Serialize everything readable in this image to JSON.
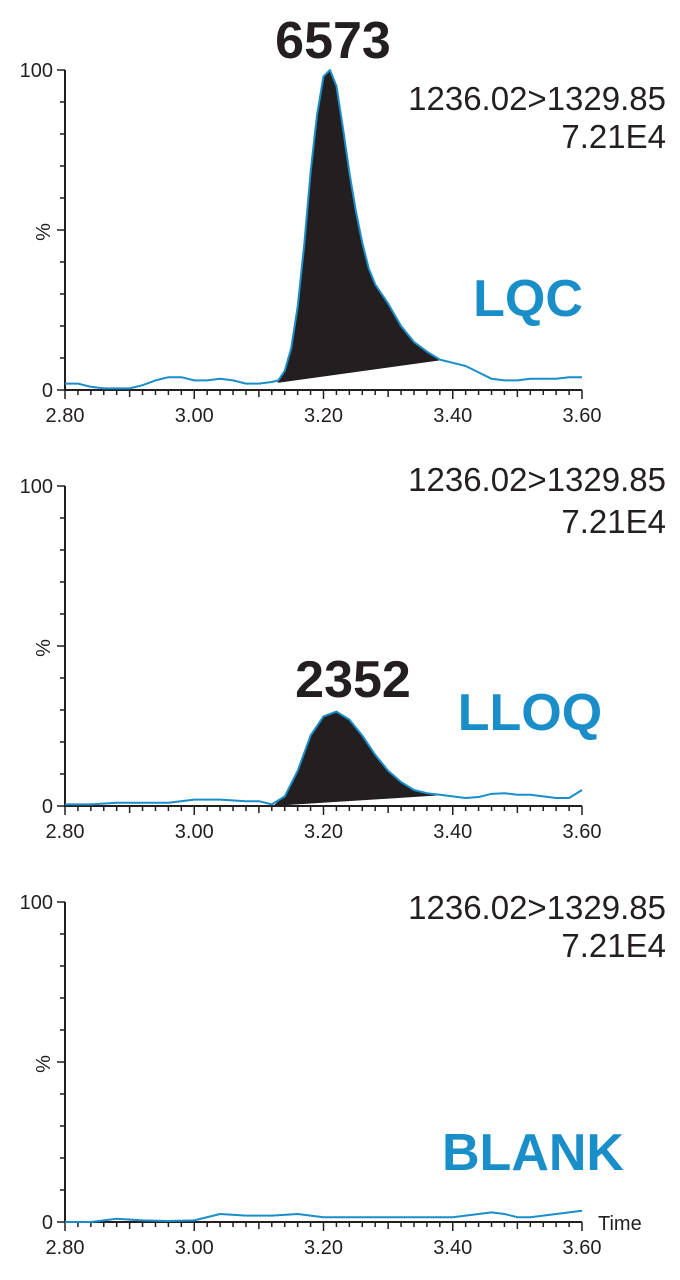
{
  "chart_data": [
    {
      "type": "line",
      "sample_label": "LQC",
      "transition": "1236.02>1329.85",
      "intensity": "7.21E4",
      "peak_area_label": "6573",
      "xlim": [
        2.8,
        3.6
      ],
      "ylim": [
        0,
        100
      ],
      "x_ticks": [
        "2.80",
        "3.00",
        "3.20",
        "3.40",
        "3.60"
      ],
      "y_ticks": [
        "0",
        "100"
      ],
      "ylabel": "%",
      "xlabel": "",
      "integration": {
        "start": [
          3.13,
          2.5
        ],
        "end": [
          3.38,
          9.5
        ]
      },
      "series": [
        {
          "color": "#1a8ec9",
          "x": [
            2.8,
            2.82,
            2.84,
            2.86,
            2.88,
            2.9,
            2.92,
            2.94,
            2.96,
            2.98,
            3.0,
            3.02,
            3.04,
            3.06,
            3.08,
            3.1,
            3.12,
            3.13,
            3.14,
            3.15,
            3.16,
            3.17,
            3.18,
            3.19,
            3.2,
            3.21,
            3.22,
            3.23,
            3.24,
            3.25,
            3.26,
            3.27,
            3.28,
            3.29,
            3.3,
            3.32,
            3.34,
            3.36,
            3.38,
            3.4,
            3.42,
            3.44,
            3.46,
            3.48,
            3.5,
            3.52,
            3.54,
            3.56,
            3.58,
            3.6
          ],
          "y": [
            2,
            2,
            1,
            0.5,
            0.5,
            0.5,
            1.5,
            3,
            4,
            4,
            3,
            3,
            3.5,
            3,
            2,
            2,
            2.5,
            3,
            6,
            13,
            26,
            45,
            68,
            86,
            98,
            100,
            95,
            82,
            68,
            56,
            46,
            38,
            33,
            30,
            27,
            20,
            15,
            12,
            9.5,
            8.5,
            7.5,
            5.5,
            3.5,
            3,
            3,
            3.5,
            3.5,
            3.5,
            4,
            4
          ]
        }
      ]
    },
    {
      "type": "line",
      "sample_label": "LLOQ",
      "transition": "1236.02>1329.85",
      "intensity": "7.21E4",
      "peak_area_label": "2352",
      "xlim": [
        2.8,
        3.6
      ],
      "ylim": [
        0,
        100
      ],
      "x_ticks": [
        "2.80",
        "3.00",
        "3.20",
        "3.40",
        "3.60"
      ],
      "y_ticks": [
        "0",
        "100"
      ],
      "ylabel": "%",
      "xlabel": "",
      "integration": {
        "start": [
          3.125,
          0.3
        ],
        "end": [
          3.375,
          3.5
        ]
      },
      "series": [
        {
          "color": "#1a8ec9",
          "x": [
            2.8,
            2.84,
            2.88,
            2.92,
            2.96,
            3.0,
            3.04,
            3.08,
            3.1,
            3.12,
            3.14,
            3.16,
            3.18,
            3.2,
            3.22,
            3.24,
            3.26,
            3.28,
            3.3,
            3.32,
            3.34,
            3.36,
            3.38,
            3.4,
            3.42,
            3.44,
            3.46,
            3.48,
            3.5,
            3.52,
            3.54,
            3.56,
            3.58,
            3.6
          ],
          "y": [
            0.5,
            0.5,
            1,
            1,
            1,
            2,
            2,
            1.5,
            1.5,
            0.5,
            3,
            11,
            22,
            28,
            29.5,
            27,
            22,
            16,
            11,
            7.5,
            5,
            4,
            3.5,
            3,
            2.5,
            2.8,
            3.8,
            4,
            3.5,
            3.5,
            3,
            2.5,
            2.5,
            5
          ]
        }
      ]
    },
    {
      "type": "line",
      "sample_label": "BLANK",
      "transition": "1236.02>1329.85",
      "intensity": "7.21E4",
      "peak_area_label": "",
      "xlim": [
        2.8,
        3.6
      ],
      "ylim": [
        0,
        100
      ],
      "x_ticks": [
        "2.80",
        "3.00",
        "3.20",
        "3.40",
        "3.60"
      ],
      "y_ticks": [
        "0",
        "100"
      ],
      "ylabel": "%",
      "xlabel": "Time",
      "integration": null,
      "series": [
        {
          "color": "#1a8ec9",
          "x": [
            2.8,
            2.84,
            2.88,
            2.92,
            2.96,
            3.0,
            3.04,
            3.08,
            3.12,
            3.16,
            3.2,
            3.24,
            3.28,
            3.32,
            3.36,
            3.4,
            3.44,
            3.46,
            3.48,
            3.5,
            3.52,
            3.54,
            3.56,
            3.58,
            3.6
          ],
          "y": [
            0,
            0,
            1,
            0.5,
            0.3,
            0.5,
            2.5,
            2,
            2,
            2.5,
            1.5,
            1.5,
            1.5,
            1.5,
            1.5,
            1.5,
            2.5,
            3,
            2.5,
            1.5,
            1.5,
            2,
            2.5,
            3,
            3.5
          ]
        }
      ]
    }
  ],
  "colors": {
    "trace": "#1a8ec9",
    "peak_fill": "#231f20",
    "sample_label": "#1a8ec9",
    "axis": "#231f20"
  }
}
